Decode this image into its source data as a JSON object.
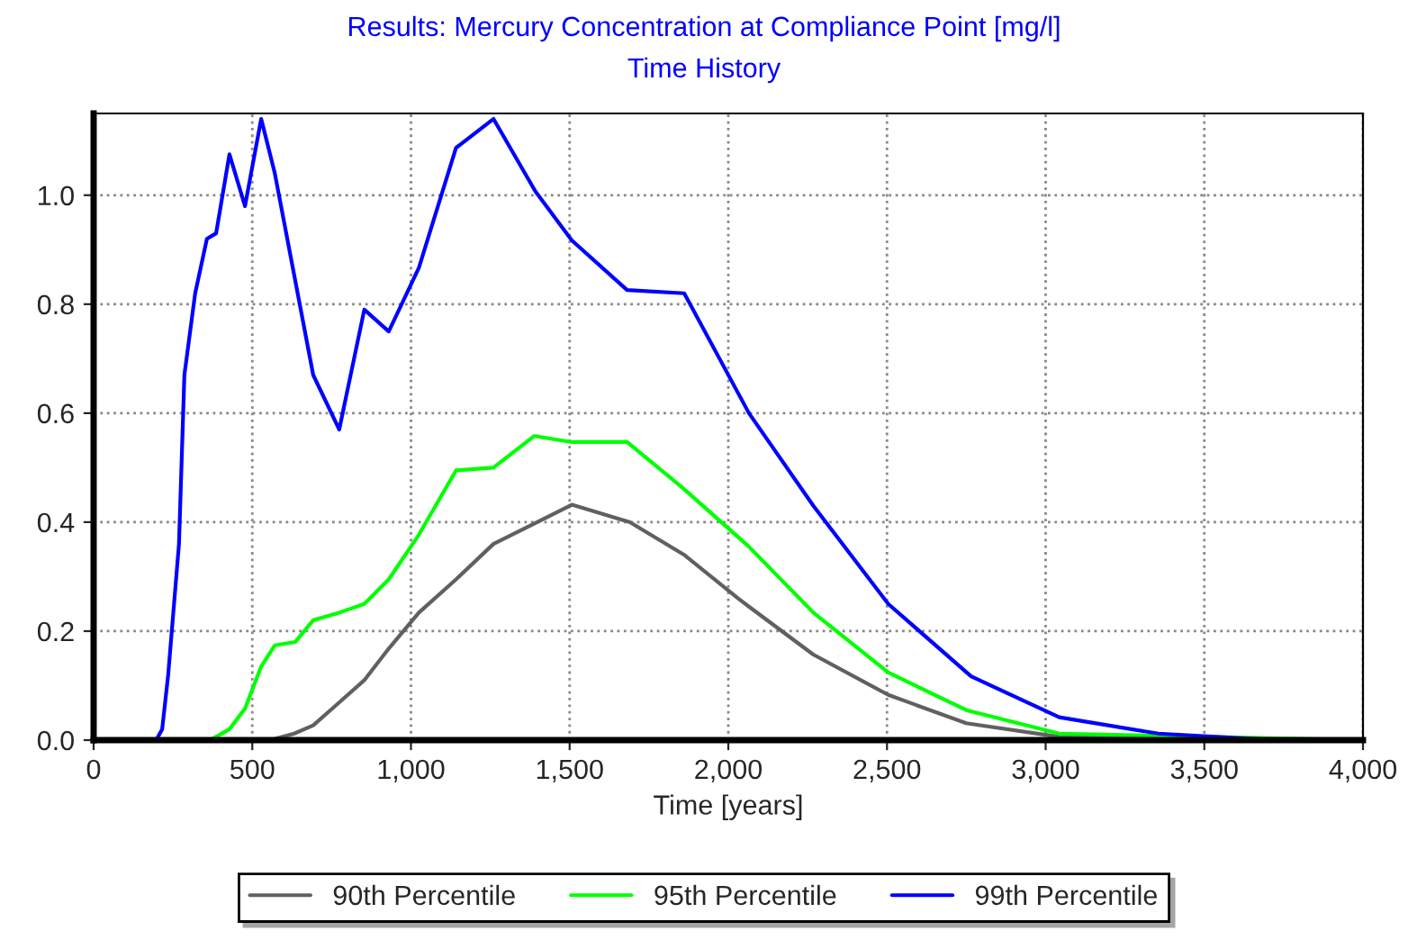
{
  "chart_data": {
    "type": "line",
    "title": "Results: Mercury Concentration at Compliance Point [mg/l]",
    "subtitle": "Time History",
    "xlabel": "Time [years]",
    "xlim": [
      0,
      4000
    ],
    "ylim": [
      0,
      1.15
    ],
    "xticks": [
      0,
      500,
      {
        "value": 1000,
        "label": "1,000"
      },
      {
        "value": 1500,
        "label": "1,500"
      },
      {
        "value": 2000,
        "label": "2,000"
      },
      {
        "value": 2500,
        "label": "2,500"
      },
      {
        "value": 3000,
        "label": "3,000"
      },
      {
        "value": 3500,
        "label": "3,500"
      },
      {
        "value": 4000,
        "label": "4,000"
      }
    ],
    "yticks": [
      {
        "value": 0,
        "label": "0.0"
      },
      {
        "value": 0.2,
        "label": "0.2"
      },
      {
        "value": 0.4,
        "label": "0.4"
      },
      {
        "value": 0.6,
        "label": "0.6"
      },
      {
        "value": 0.8,
        "label": "0.8"
      },
      {
        "value": 1.0,
        "label": "1.0"
      }
    ],
    "grid": true,
    "legend": "bottom",
    "marker": "none",
    "line_style": "solid",
    "series": [
      {
        "name": "90th Percentile",
        "color": "#606060",
        "x": [
          556,
          632,
          692,
          764,
          853,
          930,
          1025,
          1142,
          1260,
          1388,
          1507,
          1690,
          1861,
          2031,
          2065,
          2268,
          2504,
          2750,
          3043,
          4000
        ],
        "values": [
          0,
          0.012,
          0.027,
          0.064,
          0.11,
          0.168,
          0.234,
          0.295,
          0.36,
          0.397,
          0.432,
          0.4,
          0.34,
          0.26,
          0.245,
          0.157,
          0.083,
          0.031,
          0.006,
          0
        ]
      },
      {
        "name": "95th Percentile",
        "color": "#00ff00",
        "x": [
          367,
          428,
          477,
          528,
          571,
          635,
          692,
          774,
          853,
          930,
          1025,
          1142,
          1260,
          1388,
          1507,
          1681,
          1852,
          2065,
          2268,
          2504,
          2750,
          3043,
          4000
        ],
        "values": [
          0,
          0.02,
          0.058,
          0.135,
          0.174,
          0.18,
          0.22,
          0.234,
          0.25,
          0.295,
          0.377,
          0.495,
          0.5,
          0.558,
          0.547,
          0.547,
          0.465,
          0.355,
          0.234,
          0.124,
          0.055,
          0.012,
          0
        ]
      },
      {
        "name": "99th Percentile",
        "color": "#0000ff",
        "x": [
          197,
          216,
          235,
          269,
          286,
          320,
          357,
          386,
          428,
          477,
          528,
          571,
          692,
          774,
          853,
          930,
          1025,
          1142,
          1260,
          1392,
          1507,
          1681,
          1861,
          2065,
          2268,
          2504,
          2765,
          3043,
          3355,
          3733,
          4000
        ],
        "values": [
          0,
          0.02,
          0.12,
          0.36,
          0.67,
          0.82,
          0.92,
          0.93,
          1.075,
          0.98,
          1.14,
          1.04,
          0.67,
          0.57,
          0.79,
          0.75,
          0.867,
          1.087,
          1.14,
          1.007,
          0.917,
          0.826,
          0.82,
          0.6,
          0.43,
          0.25,
          0.117,
          0.042,
          0.012,
          0,
          0
        ]
      }
    ]
  }
}
